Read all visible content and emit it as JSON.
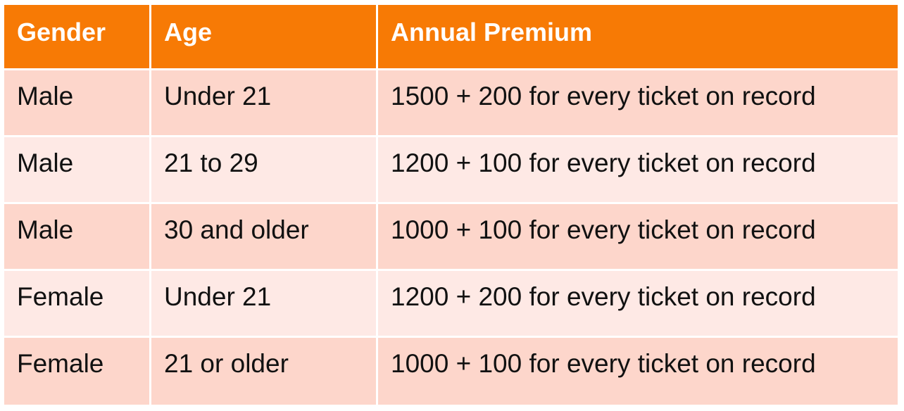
{
  "colors": {
    "header_background": "#f77a05",
    "header_text": "#ffffff",
    "row_odd_background": "#fdd6cb",
    "row_even_background": "#fee9e5",
    "body_text": "#111111"
  },
  "table": {
    "headers": [
      "Gender",
      "Age",
      "Annual Premium"
    ],
    "rows": [
      [
        "Male",
        "Under 21",
        "1500 + 200 for every ticket on record"
      ],
      [
        "Male",
        "21 to 29",
        "1200 + 100 for every ticket on record"
      ],
      [
        "Male",
        "30 and older",
        "1000 + 100 for every ticket on record"
      ],
      [
        "Female",
        "Under 21",
        "1200 + 200 for every ticket on record"
      ],
      [
        "Female",
        "21 or older",
        "1000 + 100 for every ticket on record"
      ]
    ]
  }
}
